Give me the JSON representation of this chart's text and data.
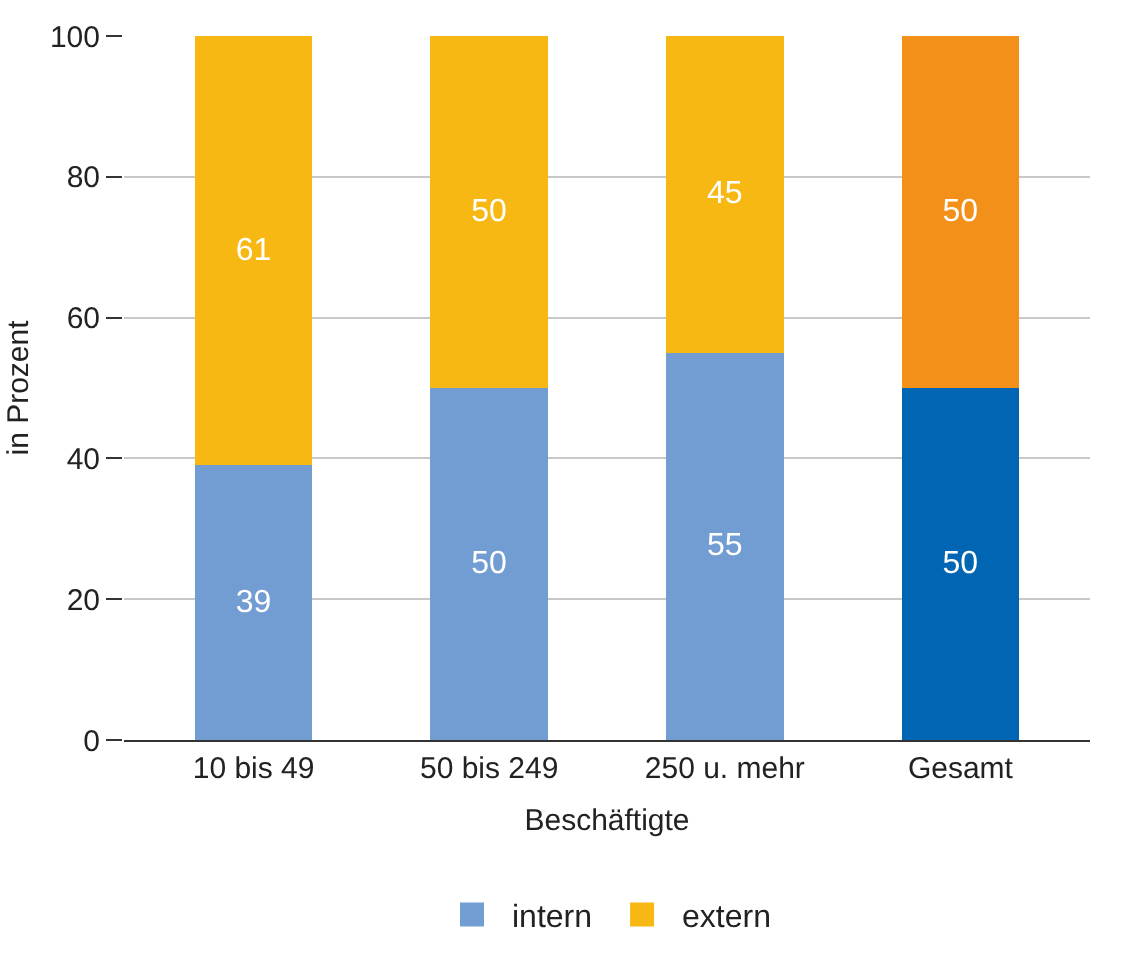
{
  "chart_data": {
    "type": "bar",
    "stacked": true,
    "xlabel": "Beschäftigte",
    "ylabel": "in Prozent",
    "categories": [
      "10 bis 49",
      "50 bis 249",
      "250 u. mehr",
      "Gesamt"
    ],
    "series": [
      {
        "name": "intern",
        "color": "#729dd3",
        "colors": [
          "#729dd3",
          "#729dd3",
          "#729dd3",
          "#0066b3"
        ],
        "values": [
          39,
          50,
          55,
          50
        ]
      },
      {
        "name": "extern",
        "color": "#f8b814",
        "colors": [
          "#f8b814",
          "#f8b814",
          "#f8b814",
          "#f39019"
        ],
        "values": [
          61,
          50,
          45,
          50
        ]
      }
    ],
    "ylim": [
      0,
      100
    ],
    "yticks": [
      0,
      20,
      40,
      60,
      80,
      100
    ],
    "grid": "y",
    "legend": "bottom",
    "data_labels": true
  }
}
